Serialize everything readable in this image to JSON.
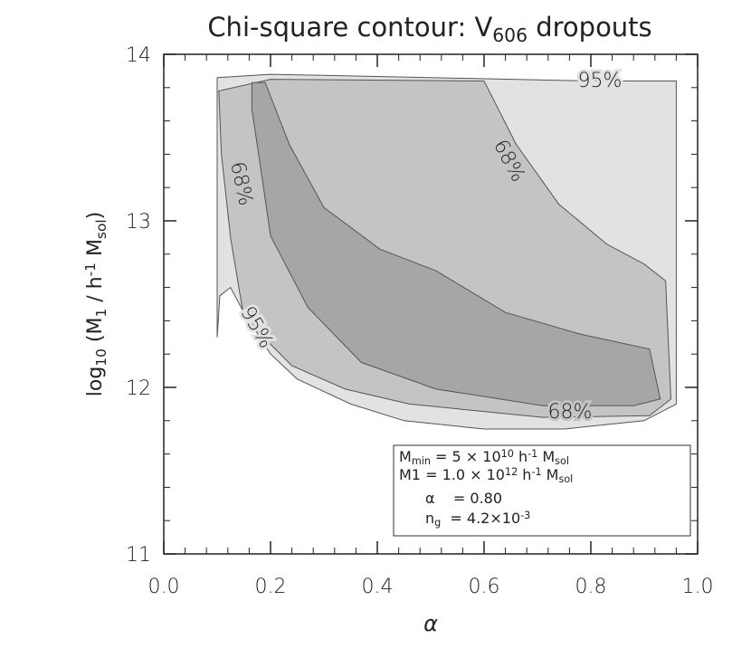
{
  "chart_data": {
    "type": "contour",
    "title": [
      {
        "text": "Chi-square contour: V"
      },
      {
        "text": "606",
        "pos": "sub"
      },
      {
        "text": " dropouts"
      }
    ],
    "x_label": [
      {
        "text": "α"
      }
    ],
    "y_label": [
      {
        "text": "log"
      },
      {
        "text": "10",
        "pos": "sub"
      },
      {
        "text": " (M"
      },
      {
        "text": "1",
        "pos": "sub"
      },
      {
        "text": " / h"
      },
      {
        "text": "-1",
        "pos": "sup"
      },
      {
        "text": " M"
      },
      {
        "text": "sol",
        "pos": "sub"
      },
      {
        "text": ")"
      }
    ],
    "xlim": [
      0,
      1
    ],
    "ylim": [
      11,
      14
    ],
    "xticks": [
      {
        "value": 0,
        "label": "0.0"
      },
      0.2,
      0.4,
      0.6,
      0.8,
      {
        "value": 1,
        "label": "1.0"
      }
    ],
    "yticks": [
      11,
      12,
      13,
      14
    ],
    "series": [
      {
        "color": "#e2e2e2",
        "x": [
          0.1,
          0.105,
          0.125,
          0.15,
          0.2,
          0.25,
          0.35,
          0.45,
          0.6,
          0.75,
          0.9,
          0.96,
          0.96,
          0.8,
          0.5,
          0.2,
          0.1
        ],
        "values": [
          12.3,
          12.55,
          12.6,
          12.45,
          12.2,
          12.05,
          11.9,
          11.8,
          11.75,
          11.75,
          11.8,
          11.9,
          13.84,
          13.84,
          13.86,
          13.88,
          13.86
        ]
      },
      {
        "color": "#c4c4c4",
        "x": [
          0.103,
          0.2,
          0.6,
          0.66,
          0.74,
          0.83,
          0.9,
          0.94,
          0.95,
          0.91,
          0.71,
          0.46,
          0.34,
          0.24,
          0.15,
          0.125,
          0.108
        ],
        "values": [
          13.78,
          13.85,
          13.84,
          13.46,
          13.1,
          12.86,
          12.74,
          12.64,
          11.93,
          11.83,
          11.82,
          11.9,
          11.99,
          12.13,
          12.42,
          12.9,
          13.4
        ]
      },
      {
        "color": "#a6a6a6",
        "x": [
          0.165,
          0.19,
          0.235,
          0.3,
          0.405,
          0.51,
          0.64,
          0.78,
          0.91,
          0.93,
          0.88,
          0.71,
          0.51,
          0.37,
          0.27,
          0.2,
          0.18,
          0.165
        ],
        "values": [
          13.83,
          13.83,
          13.46,
          13.08,
          12.83,
          12.7,
          12.45,
          12.32,
          12.23,
          11.93,
          11.89,
          11.89,
          11.99,
          12.15,
          12.48,
          12.91,
          13.35,
          13.67
        ]
      }
    ],
    "contour_labels": [
      "95%",
      "68%",
      "68%",
      "68%",
      "95%"
    ],
    "annotation": [
      [
        {
          "text": "M"
        },
        {
          "text": "min",
          "pos": "sub"
        },
        {
          "text": " = 5 × 10"
        },
        {
          "text": "10",
          "pos": "sup"
        },
        {
          "text": " h"
        },
        {
          "text": "-1",
          "pos": "sup"
        },
        {
          "text": " M"
        },
        {
          "text": "sol",
          "pos": "sub"
        }
      ],
      [
        {
          "text": "M1 = 1.0 × 10"
        },
        {
          "text": "12",
          "pos": "sup"
        },
        {
          "text": " h"
        },
        {
          "text": "-1",
          "pos": "sup"
        },
        {
          "text": " M"
        },
        {
          "text": "sol",
          "pos": "sub"
        }
      ],
      [
        {
          "text": "α    = 0.80"
        }
      ],
      [
        {
          "text": "n"
        },
        {
          "text": "g",
          "pos": "sub"
        },
        {
          "text": "  = 4.2×10"
        },
        {
          "text": "-3",
          "pos": "sup"
        }
      ]
    ]
  }
}
